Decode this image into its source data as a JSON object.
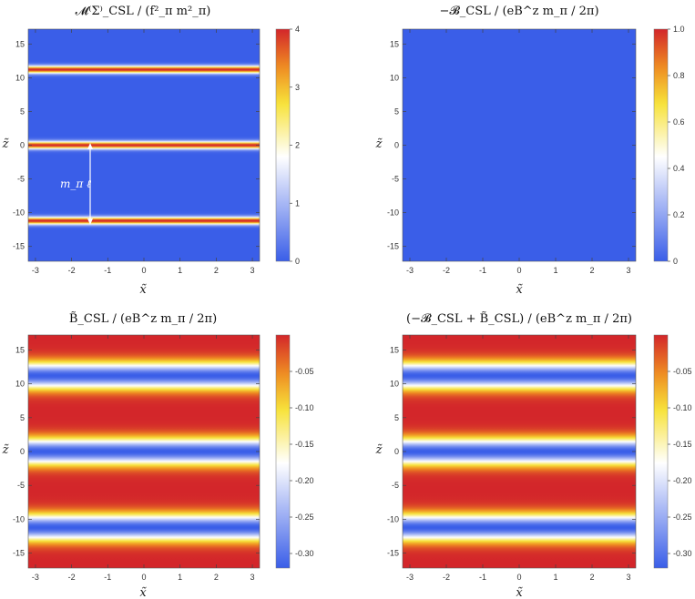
{
  "chart_data": [
    {
      "type": "heatmap",
      "panel": "top-left",
      "title": "𝓜⁽Σ⁾_CSL / (f²_π m²_π)",
      "xlabel": "x̃",
      "ylabel": "z̃",
      "xlim": [
        -3.2,
        3.2
      ],
      "ylim": [
        -17.2,
        17.2
      ],
      "x_ticks": [
        "-3",
        "-2",
        "-1",
        "0",
        "1",
        "2",
        "3"
      ],
      "y_ticks": [
        "-15",
        "-10",
        "-5",
        "0",
        "5",
        "10",
        "15"
      ],
      "colorbar_range": [
        0,
        4
      ],
      "colorbar_ticks": [
        "0",
        "1",
        "2",
        "3",
        "4"
      ],
      "pattern": "peaks",
      "peak_centers": [
        -11.2,
        0.0,
        11.2
      ],
      "peak_value": 4,
      "background_value": 0,
      "annotation": "m_π ℓ"
    },
    {
      "type": "heatmap",
      "panel": "top-right",
      "title": "−𝓑_CSL / (eB^z m_π / 2π)",
      "xlabel": "x̃",
      "ylabel": "z̃",
      "xlim": [
        -3.2,
        3.2
      ],
      "ylim": [
        -17.2,
        17.2
      ],
      "x_ticks": [
        "-3",
        "-2",
        "-1",
        "0",
        "1",
        "2",
        "3"
      ],
      "y_ticks": [
        "-15",
        "-10",
        "-5",
        "0",
        "5",
        "10",
        "15"
      ],
      "colorbar_range": [
        0,
        1.0
      ],
      "colorbar_ticks": [
        "0",
        "0.2",
        "0.4",
        "0.6",
        "0.8",
        "1.0"
      ],
      "pattern": "uniform",
      "uniform_value": 0
    },
    {
      "type": "heatmap",
      "panel": "bottom-left",
      "title": "B̃_CSL / (eB^z m_π / 2π)",
      "xlabel": "x̃",
      "ylabel": "z̃",
      "xlim": [
        -3.2,
        3.2
      ],
      "ylim": [
        -17.2,
        17.2
      ],
      "x_ticks": [
        "-3",
        "-2",
        "-1",
        "0",
        "1",
        "2",
        "3"
      ],
      "y_ticks": [
        "-15",
        "-10",
        "-5",
        "0",
        "5",
        "10",
        "15"
      ],
      "colorbar_range": [
        -0.32,
        0.0
      ],
      "colorbar_ticks": [
        "-0.05",
        "-0.10",
        "-0.15",
        "-0.20",
        "-0.25",
        "-0.30"
      ],
      "pattern": "troughs",
      "trough_centers": [
        -11.2,
        0.0,
        11.2
      ],
      "trough_value": -0.32,
      "background_value": 0
    },
    {
      "type": "heatmap",
      "panel": "bottom-right",
      "title": "(−𝓑_CSL + B̃_CSL) / (eB^z m_π / 2π)",
      "xlabel": "x̃",
      "ylabel": "z̃",
      "xlim": [
        -3.2,
        3.2
      ],
      "ylim": [
        -17.2,
        17.2
      ],
      "x_ticks": [
        "-3",
        "-2",
        "-1",
        "0",
        "1",
        "2",
        "3"
      ],
      "y_ticks": [
        "-15",
        "-10",
        "-5",
        "0",
        "5",
        "10",
        "15"
      ],
      "colorbar_range": [
        -0.32,
        0.0
      ],
      "colorbar_ticks": [
        "-0.05",
        "-0.10",
        "-0.15",
        "-0.20",
        "-0.25",
        "-0.30"
      ],
      "pattern": "troughs",
      "trough_centers": [
        -11.2,
        0.0,
        11.2
      ],
      "trough_value": -0.32,
      "background_value": 0
    }
  ],
  "colors": {
    "low": "#3a5ee8",
    "mid": "#ffffff",
    "yellow": "#f7e23a",
    "orange": "#ee8a22",
    "high": "#d3262a"
  }
}
